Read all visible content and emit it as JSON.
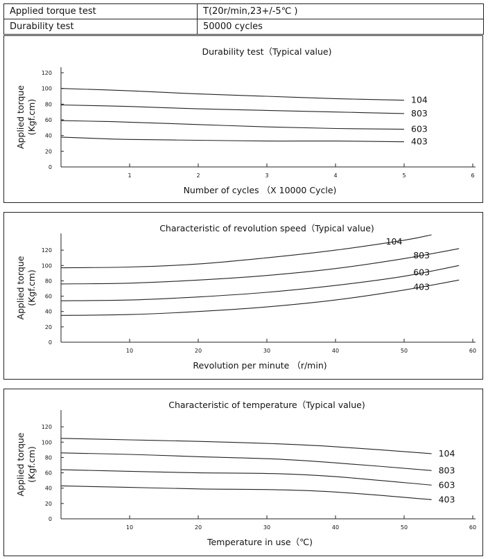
{
  "spec_table": {
    "rows": [
      {
        "label": "Applied torque test",
        "value": "T(20r/min,23+/-5℃ )"
      },
      {
        "label": "Durability test",
        "value": "50000 cycles"
      }
    ]
  },
  "chart_data": [
    {
      "type": "line",
      "title": "Durability test（Typical value)",
      "xlabel": "Number of cycles （X 10000 Cycle)",
      "ylabel": [
        "Applied torque",
        "(Kgf.cm)"
      ],
      "xlim": [
        0,
        6
      ],
      "ylim": [
        0,
        120
      ],
      "xticks": [
        1,
        2,
        3,
        4,
        5,
        6
      ],
      "yticks": [
        0,
        20,
        40,
        60,
        80,
        100,
        120
      ],
      "series": [
        {
          "name": "104",
          "x": [
            0,
            1,
            2,
            3,
            4,
            5
          ],
          "y": [
            100,
            97,
            93,
            90,
            87,
            85
          ]
        },
        {
          "name": "803",
          "x": [
            0,
            1,
            2,
            3,
            4,
            5
          ],
          "y": [
            79,
            77,
            74,
            72,
            70,
            68
          ]
        },
        {
          "name": "603",
          "x": [
            0,
            0.6,
            1,
            2,
            3,
            4,
            5
          ],
          "y": [
            59,
            58,
            57,
            54,
            51,
            49,
            48
          ]
        },
        {
          "name": "403",
          "x": [
            0,
            0.6,
            1,
            2,
            3,
            4,
            5
          ],
          "y": [
            38,
            36,
            35,
            34,
            33,
            33,
            32
          ]
        }
      ]
    },
    {
      "type": "line",
      "title": "Characteristic of revolution speed（Typical value)",
      "xlabel": "Revolution per minute （r/min)",
      "ylabel": [
        "Applied torque",
        "(Kgf.cm)"
      ],
      "xlim": [
        0,
        60
      ],
      "ylim": [
        0,
        140
      ],
      "xticks": [
        10,
        20,
        30,
        40,
        50,
        60
      ],
      "yticks": [
        0,
        20,
        40,
        60,
        80,
        100,
        120
      ],
      "series": [
        {
          "name": "104",
          "x": [
            0,
            10,
            20,
            30,
            40,
            50,
            54
          ],
          "y": [
            97,
            98,
            102,
            110,
            120,
            133,
            140
          ]
        },
        {
          "name": "803",
          "x": [
            0,
            10,
            20,
            30,
            40,
            50,
            58
          ],
          "y": [
            76,
            77,
            81,
            87,
            96,
            109,
            122
          ]
        },
        {
          "name": "603",
          "x": [
            0,
            10,
            20,
            30,
            40,
            50,
            58
          ],
          "y": [
            54,
            55,
            59,
            65,
            74,
            86,
            100
          ]
        },
        {
          "name": "403",
          "x": [
            0,
            10,
            20,
            30,
            40,
            50,
            58
          ],
          "y": [
            35,
            36,
            40,
            46,
            55,
            68,
            81
          ]
        }
      ]
    },
    {
      "type": "line",
      "title": "Characteristic of temperature（Typical value)",
      "xlabel": "Temperature in use（℃)",
      "ylabel": [
        "Applied torque",
        "(Kgf.cm)"
      ],
      "xlim": [
        0,
        60
      ],
      "ylim": [
        0,
        140
      ],
      "xticks": [
        10,
        20,
        30,
        40,
        50,
        60
      ],
      "yticks": [
        0,
        20,
        40,
        60,
        80,
        100,
        120
      ],
      "series": [
        {
          "name": "104",
          "x": [
            0,
            10,
            20,
            31,
            40,
            54
          ],
          "y": [
            105,
            103,
            101,
            98,
            94,
            85
          ]
        },
        {
          "name": "803",
          "x": [
            0,
            10,
            20,
            31,
            40,
            54
          ],
          "y": [
            86,
            84,
            81,
            78,
            73,
            63
          ]
        },
        {
          "name": "603",
          "x": [
            0,
            10,
            20,
            31,
            40,
            54
          ],
          "y": [
            64,
            62,
            60,
            59,
            55,
            44
          ]
        },
        {
          "name": "403",
          "x": [
            0,
            10,
            20,
            31,
            40,
            54
          ],
          "y": [
            43,
            41,
            39,
            38,
            35,
            25
          ]
        }
      ]
    }
  ]
}
